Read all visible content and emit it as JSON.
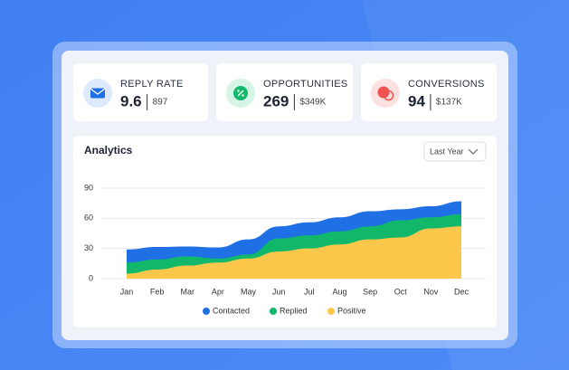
{
  "cards": [
    {
      "label": "REPLY RATE",
      "value": 9.6,
      "sub": 897
    },
    {
      "label": "OPPORTUNITIES",
      "value": 269,
      "sub": "$349K"
    },
    {
      "label": "CONVERSIONS",
      "value": 94,
      "sub": "$137K"
    }
  ],
  "chart_data": {
    "type": "area",
    "title": "Analytics",
    "filter": "Last Year",
    "categories": [
      "Jan",
      "Feb",
      "Mar",
      "Apr",
      "May",
      "Jun",
      "Jul",
      "Aug",
      "Sep",
      "Oct",
      "Nov",
      "Dec"
    ],
    "series": [
      {
        "name": "Contacted",
        "color": "#1f6fe5",
        "values": [
          29,
          31.5,
          32,
          31,
          39,
          52,
          56,
          61,
          67,
          69,
          72,
          77
        ]
      },
      {
        "name": "Replied",
        "color": "#12b86a",
        "values": [
          16,
          19,
          22,
          20,
          24,
          40,
          43,
          47,
          52,
          58,
          61,
          64
        ]
      },
      {
        "name": "Positive",
        "color": "#fdc74c",
        "values": [
          5,
          9,
          13,
          16,
          20,
          27,
          30,
          34,
          39,
          41,
          50,
          52
        ]
      }
    ],
    "ylim": [
      0,
      90
    ],
    "yticks": [
      0,
      30,
      60,
      90
    ],
    "grid": true
  }
}
